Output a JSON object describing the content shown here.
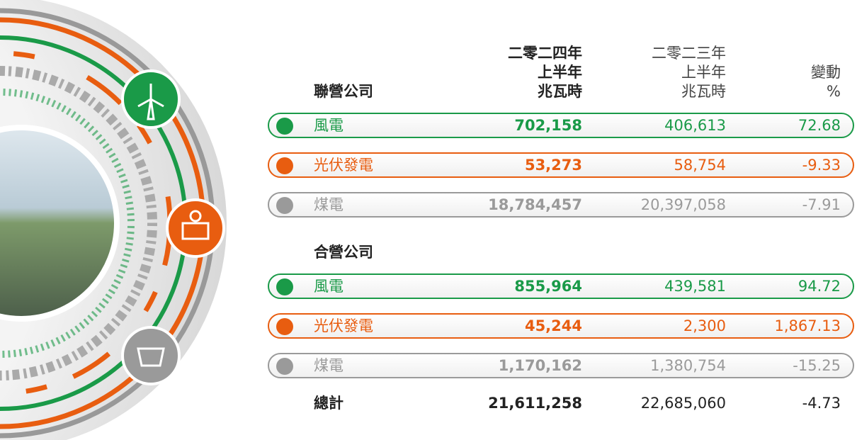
{
  "table": {
    "headers": {
      "col1": [
        "二零二四年",
        "上半年",
        "兆瓦時"
      ],
      "col2": [
        "二零二三年",
        "上半年",
        "兆瓦時"
      ],
      "col3": [
        "變動",
        "%"
      ]
    },
    "sections": [
      {
        "title": "聯營公司",
        "rows": [
          {
            "label": "風電",
            "color": "#1a9a48",
            "values": [
              "702,158",
              "406,613",
              "72.68"
            ]
          },
          {
            "label": "光伏發電",
            "color": "#e85d10",
            "values": [
              "53,273",
              "58,754",
              "-9.33"
            ]
          },
          {
            "label": "煤電",
            "color": "#9a9a9a",
            "values": [
              "18,784,457",
              "20,397,058",
              "-7.91"
            ]
          }
        ]
      },
      {
        "title": "合營公司",
        "rows": [
          {
            "label": "風電",
            "color": "#1a9a48",
            "values": [
              "855,964",
              "439,581",
              "94.72"
            ]
          },
          {
            "label": "光伏發電",
            "color": "#e85d10",
            "values": [
              "45,244",
              "2,300",
              "1,867.13"
            ]
          },
          {
            "label": "煤電",
            "color": "#9a9a9a",
            "values": [
              "1,170,162",
              "1,380,754",
              "-15.25"
            ]
          }
        ]
      }
    ],
    "total": {
      "label": "總計",
      "values": [
        "21,611,258",
        "22,685,060",
        "-4.73"
      ]
    }
  }
}
